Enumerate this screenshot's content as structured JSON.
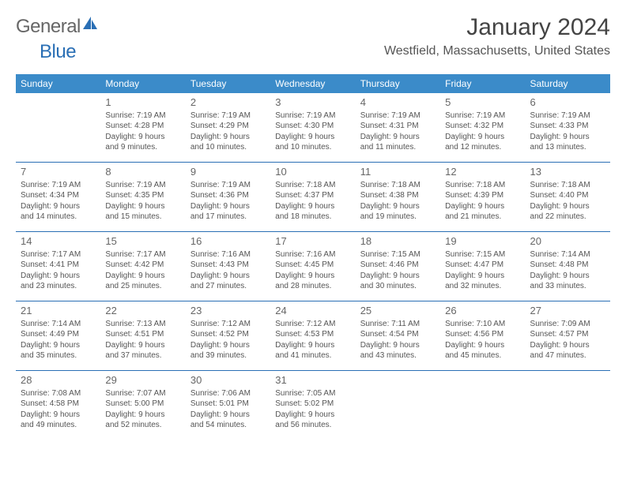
{
  "logo": {
    "part1": "General",
    "part2": "Blue"
  },
  "title": "January 2024",
  "location": "Westfield, Massachusetts, United States",
  "weekdays": [
    "Sunday",
    "Monday",
    "Tuesday",
    "Wednesday",
    "Thursday",
    "Friday",
    "Saturday"
  ],
  "colors": {
    "header_bg": "#3b8bc9",
    "header_fg": "#ffffff",
    "rule": "#2a6fb5",
    "text": "#555555",
    "daynum": "#666666",
    "title": "#444444"
  },
  "grid": [
    [
      {
        "empty": true
      },
      {
        "num": "1",
        "sunrise": "Sunrise: 7:19 AM",
        "sunset": "Sunset: 4:28 PM",
        "day1": "Daylight: 9 hours",
        "day2": "and 9 minutes."
      },
      {
        "num": "2",
        "sunrise": "Sunrise: 7:19 AM",
        "sunset": "Sunset: 4:29 PM",
        "day1": "Daylight: 9 hours",
        "day2": "and 10 minutes."
      },
      {
        "num": "3",
        "sunrise": "Sunrise: 7:19 AM",
        "sunset": "Sunset: 4:30 PM",
        "day1": "Daylight: 9 hours",
        "day2": "and 10 minutes."
      },
      {
        "num": "4",
        "sunrise": "Sunrise: 7:19 AM",
        "sunset": "Sunset: 4:31 PM",
        "day1": "Daylight: 9 hours",
        "day2": "and 11 minutes."
      },
      {
        "num": "5",
        "sunrise": "Sunrise: 7:19 AM",
        "sunset": "Sunset: 4:32 PM",
        "day1": "Daylight: 9 hours",
        "day2": "and 12 minutes."
      },
      {
        "num": "6",
        "sunrise": "Sunrise: 7:19 AM",
        "sunset": "Sunset: 4:33 PM",
        "day1": "Daylight: 9 hours",
        "day2": "and 13 minutes."
      }
    ],
    [
      {
        "num": "7",
        "sunrise": "Sunrise: 7:19 AM",
        "sunset": "Sunset: 4:34 PM",
        "day1": "Daylight: 9 hours",
        "day2": "and 14 minutes."
      },
      {
        "num": "8",
        "sunrise": "Sunrise: 7:19 AM",
        "sunset": "Sunset: 4:35 PM",
        "day1": "Daylight: 9 hours",
        "day2": "and 15 minutes."
      },
      {
        "num": "9",
        "sunrise": "Sunrise: 7:19 AM",
        "sunset": "Sunset: 4:36 PM",
        "day1": "Daylight: 9 hours",
        "day2": "and 17 minutes."
      },
      {
        "num": "10",
        "sunrise": "Sunrise: 7:18 AM",
        "sunset": "Sunset: 4:37 PM",
        "day1": "Daylight: 9 hours",
        "day2": "and 18 minutes."
      },
      {
        "num": "11",
        "sunrise": "Sunrise: 7:18 AM",
        "sunset": "Sunset: 4:38 PM",
        "day1": "Daylight: 9 hours",
        "day2": "and 19 minutes."
      },
      {
        "num": "12",
        "sunrise": "Sunrise: 7:18 AM",
        "sunset": "Sunset: 4:39 PM",
        "day1": "Daylight: 9 hours",
        "day2": "and 21 minutes."
      },
      {
        "num": "13",
        "sunrise": "Sunrise: 7:18 AM",
        "sunset": "Sunset: 4:40 PM",
        "day1": "Daylight: 9 hours",
        "day2": "and 22 minutes."
      }
    ],
    [
      {
        "num": "14",
        "sunrise": "Sunrise: 7:17 AM",
        "sunset": "Sunset: 4:41 PM",
        "day1": "Daylight: 9 hours",
        "day2": "and 23 minutes."
      },
      {
        "num": "15",
        "sunrise": "Sunrise: 7:17 AM",
        "sunset": "Sunset: 4:42 PM",
        "day1": "Daylight: 9 hours",
        "day2": "and 25 minutes."
      },
      {
        "num": "16",
        "sunrise": "Sunrise: 7:16 AM",
        "sunset": "Sunset: 4:43 PM",
        "day1": "Daylight: 9 hours",
        "day2": "and 27 minutes."
      },
      {
        "num": "17",
        "sunrise": "Sunrise: 7:16 AM",
        "sunset": "Sunset: 4:45 PM",
        "day1": "Daylight: 9 hours",
        "day2": "and 28 minutes."
      },
      {
        "num": "18",
        "sunrise": "Sunrise: 7:15 AM",
        "sunset": "Sunset: 4:46 PM",
        "day1": "Daylight: 9 hours",
        "day2": "and 30 minutes."
      },
      {
        "num": "19",
        "sunrise": "Sunrise: 7:15 AM",
        "sunset": "Sunset: 4:47 PM",
        "day1": "Daylight: 9 hours",
        "day2": "and 32 minutes."
      },
      {
        "num": "20",
        "sunrise": "Sunrise: 7:14 AM",
        "sunset": "Sunset: 4:48 PM",
        "day1": "Daylight: 9 hours",
        "day2": "and 33 minutes."
      }
    ],
    [
      {
        "num": "21",
        "sunrise": "Sunrise: 7:14 AM",
        "sunset": "Sunset: 4:49 PM",
        "day1": "Daylight: 9 hours",
        "day2": "and 35 minutes."
      },
      {
        "num": "22",
        "sunrise": "Sunrise: 7:13 AM",
        "sunset": "Sunset: 4:51 PM",
        "day1": "Daylight: 9 hours",
        "day2": "and 37 minutes."
      },
      {
        "num": "23",
        "sunrise": "Sunrise: 7:12 AM",
        "sunset": "Sunset: 4:52 PM",
        "day1": "Daylight: 9 hours",
        "day2": "and 39 minutes."
      },
      {
        "num": "24",
        "sunrise": "Sunrise: 7:12 AM",
        "sunset": "Sunset: 4:53 PM",
        "day1": "Daylight: 9 hours",
        "day2": "and 41 minutes."
      },
      {
        "num": "25",
        "sunrise": "Sunrise: 7:11 AM",
        "sunset": "Sunset: 4:54 PM",
        "day1": "Daylight: 9 hours",
        "day2": "and 43 minutes."
      },
      {
        "num": "26",
        "sunrise": "Sunrise: 7:10 AM",
        "sunset": "Sunset: 4:56 PM",
        "day1": "Daylight: 9 hours",
        "day2": "and 45 minutes."
      },
      {
        "num": "27",
        "sunrise": "Sunrise: 7:09 AM",
        "sunset": "Sunset: 4:57 PM",
        "day1": "Daylight: 9 hours",
        "day2": "and 47 minutes."
      }
    ],
    [
      {
        "num": "28",
        "sunrise": "Sunrise: 7:08 AM",
        "sunset": "Sunset: 4:58 PM",
        "day1": "Daylight: 9 hours",
        "day2": "and 49 minutes."
      },
      {
        "num": "29",
        "sunrise": "Sunrise: 7:07 AM",
        "sunset": "Sunset: 5:00 PM",
        "day1": "Daylight: 9 hours",
        "day2": "and 52 minutes."
      },
      {
        "num": "30",
        "sunrise": "Sunrise: 7:06 AM",
        "sunset": "Sunset: 5:01 PM",
        "day1": "Daylight: 9 hours",
        "day2": "and 54 minutes."
      },
      {
        "num": "31",
        "sunrise": "Sunrise: 7:05 AM",
        "sunset": "Sunset: 5:02 PM",
        "day1": "Daylight: 9 hours",
        "day2": "and 56 minutes."
      },
      {
        "empty": true
      },
      {
        "empty": true
      },
      {
        "empty": true
      }
    ]
  ]
}
